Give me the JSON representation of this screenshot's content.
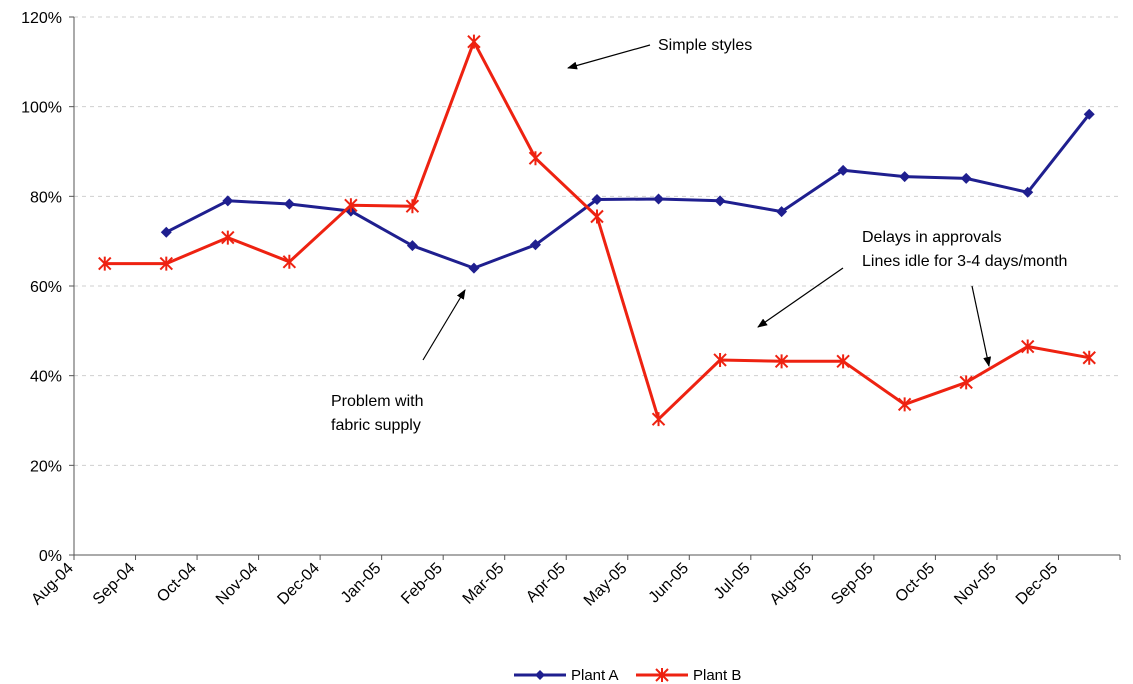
{
  "chart_data": {
    "type": "line",
    "title": "",
    "xlabel": "",
    "ylabel": "",
    "ylim": [
      0,
      120
    ],
    "y_ticks": [
      "0%",
      "20%",
      "40%",
      "60%",
      "80%",
      "100%",
      "120%"
    ],
    "grid": "horizontal dashed",
    "legend_position": "bottom",
    "x_labels": [
      "Aug-04",
      "Sep-04",
      "Oct-04",
      "Nov-04",
      "Dec-04",
      "Jan-05",
      "Feb-05",
      "Mar-05",
      "Apr-05",
      "May-05",
      "Jun-05",
      "Jul-05",
      "Aug-05",
      "Sep-05",
      "Oct-05",
      "Nov-05",
      "Dec-05"
    ],
    "series": [
      {
        "name": "Plant A",
        "color": "#1f1f8f",
        "marker": "diamond",
        "values": [
          null,
          72,
          79,
          78.3,
          76.7,
          69,
          64,
          69.2,
          79.3,
          79.4,
          79,
          76.6,
          85.8,
          84.4,
          84,
          80.9,
          98.3
        ]
      },
      {
        "name": "Plant B",
        "color": "#ee2211",
        "marker": "asterisk",
        "values": [
          65,
          65,
          70.8,
          65.4,
          78,
          77.8,
          114.5,
          88.5,
          75.5,
          30.3,
          43.5,
          43.2,
          43.2,
          33.6,
          38.5,
          46.5,
          44
        ]
      }
    ],
    "annotations": [
      {
        "text": "Simple styles"
      },
      {
        "text": "Delays in approvals"
      },
      {
        "text": "Lines idle for 3-4 days/month"
      },
      {
        "text": "Problem with"
      },
      {
        "text": "fabric supply"
      }
    ]
  }
}
